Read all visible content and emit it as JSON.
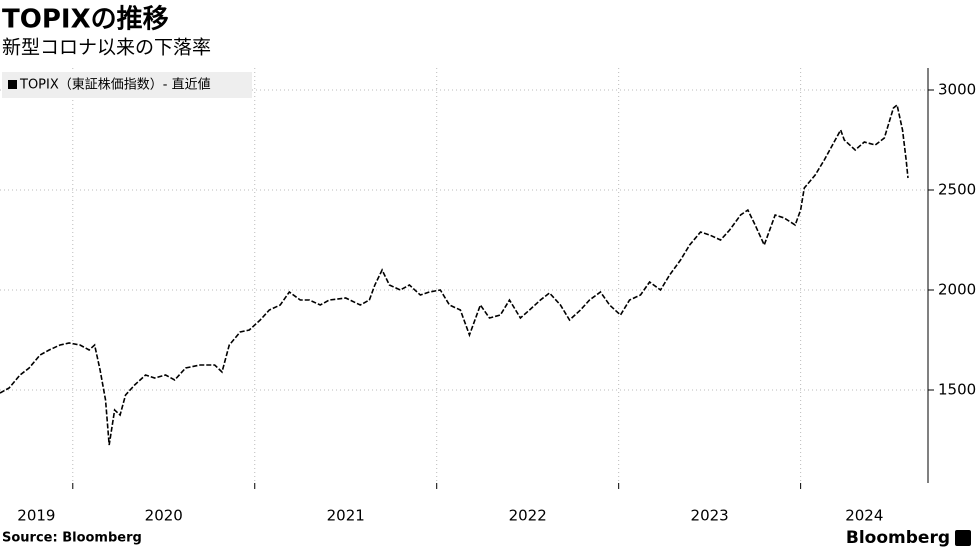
{
  "chart_data": {
    "type": "line",
    "title": "TOPIXの推移",
    "subtitle": "新型コロナ以来の下落率",
    "source": "Source: Bloomberg",
    "brand": "Bloomberg",
    "x": [
      2019.6,
      2019.65,
      2019.71,
      2019.76,
      2019.82,
      2019.87,
      2019.93,
      2019.98,
      2020.04,
      2020.09,
      2020.12,
      2020.15,
      2020.18,
      2020.2,
      2020.23,
      2020.26,
      2020.29,
      2020.34,
      2020.4,
      2020.45,
      2020.51,
      2020.56,
      2020.62,
      2020.7,
      2020.78,
      2020.82,
      2020.86,
      2020.92,
      2020.97,
      2021.03,
      2021.08,
      2021.14,
      2021.19,
      2021.25,
      2021.3,
      2021.36,
      2021.41,
      2021.5,
      2021.58,
      2021.63,
      2021.66,
      2021.7,
      2021.74,
      2021.8,
      2021.85,
      2021.91,
      2021.96,
      2022.02,
      2022.07,
      2022.13,
      2022.18,
      2022.24,
      2022.29,
      2022.35,
      2022.4,
      2022.46,
      2022.51,
      2022.57,
      2022.62,
      2022.68,
      2022.73,
      2022.79,
      2022.84,
      2022.9,
      2022.95,
      2023.01,
      2023.06,
      2023.12,
      2023.17,
      2023.23,
      2023.28,
      2023.34,
      2023.39,
      2023.45,
      2023.5,
      2023.56,
      2023.61,
      2023.67,
      2023.71,
      2023.75,
      2023.8,
      2023.86,
      2023.91,
      2023.97,
      2024.0,
      2024.02,
      2024.08,
      2024.13,
      2024.19,
      2024.22,
      2024.24,
      2024.3,
      2024.35,
      2024.41,
      2024.46,
      2024.51,
      2024.53,
      2024.56,
      2024.58,
      2024.59
    ],
    "series": [
      {
        "name": "TOPIX（東証株価指数）- 直近値",
        "color": "#000000",
        "values": [
          1485,
          1510,
          1575,
          1610,
          1675,
          1700,
          1725,
          1735,
          1725,
          1700,
          1725,
          1600,
          1450,
          1225,
          1400,
          1375,
          1475,
          1525,
          1575,
          1560,
          1575,
          1550,
          1610,
          1625,
          1625,
          1590,
          1725,
          1790,
          1800,
          1850,
          1900,
          1925,
          1990,
          1950,
          1950,
          1925,
          1950,
          1960,
          1925,
          1950,
          2025,
          2100,
          2025,
          2000,
          2025,
          1975,
          1990,
          2000,
          1925,
          1900,
          1775,
          1925,
          1860,
          1875,
          1950,
          1860,
          1900,
          1950,
          1985,
          1925,
          1850,
          1900,
          1950,
          1990,
          1925,
          1875,
          1950,
          1975,
          2040,
          2000,
          2075,
          2150,
          2225,
          2290,
          2275,
          2250,
          2300,
          2375,
          2400,
          2325,
          2225,
          2375,
          2360,
          2325,
          2400,
          2510,
          2575,
          2650,
          2750,
          2800,
          2750,
          2700,
          2740,
          2725,
          2760,
          2910,
          2925,
          2800,
          2650,
          2560
        ]
      }
    ],
    "xlim": [
      2019.6,
      2024.7
    ],
    "xticks": [
      {
        "value": 2019,
        "label": "2019"
      },
      {
        "value": 2020,
        "label": "2020"
      },
      {
        "value": 2021,
        "label": "2021"
      },
      {
        "value": 2022,
        "label": "2022"
      },
      {
        "value": 2023,
        "label": "2023"
      },
      {
        "value": 2024,
        "label": "2024"
      }
    ],
    "ylim": [
      1035,
      3110
    ],
    "yticks": [
      1500,
      2000,
      2500,
      3000
    ],
    "grid": true,
    "legend": "top-left"
  }
}
